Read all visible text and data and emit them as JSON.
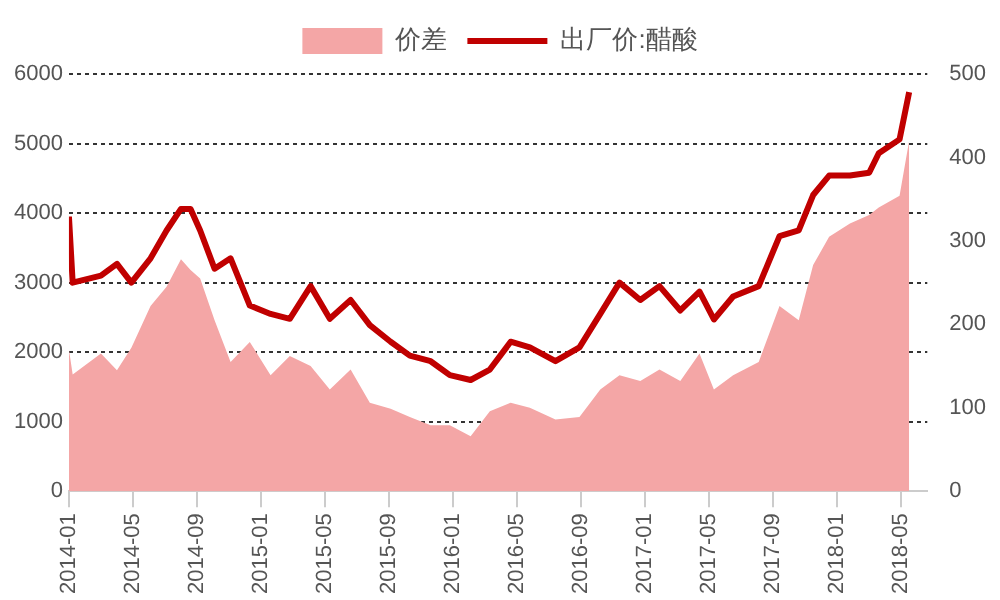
{
  "chart_data": {
    "type": "line",
    "legend": "top",
    "grid": "y",
    "marker": "none",
    "x": [
      "2014-01-01",
      "2014-01-08",
      "2014-03-01",
      "2014-04-01",
      "2014-04-28",
      "2014-06-04",
      "2014-07-04",
      "2014-08-01",
      "2014-08-19",
      "2014-09-07",
      "2014-10-04",
      "2014-11-04",
      "2014-12-10",
      "2015-01-19",
      "2015-02-25",
      "2015-04-04",
      "2015-05-10",
      "2015-06-19",
      "2015-07-25",
      "2015-09-04",
      "2015-10-10",
      "2015-11-19",
      "2015-12-25",
      "2016-02-04",
      "2016-03-10",
      "2016-04-19",
      "2016-05-25",
      "2016-07-13",
      "2016-08-28",
      "2016-10-07",
      "2016-11-13",
      "2016-12-22",
      "2017-01-28",
      "2017-03-07",
      "2017-04-13",
      "2017-05-10",
      "2017-06-16",
      "2017-08-04",
      "2017-09-13",
      "2017-10-19",
      "2017-11-16",
      "2017-12-16",
      "2018-01-25",
      "2018-03-01",
      "2018-03-19",
      "2018-04-28",
      "2018-05-16"
    ],
    "xlim": [
      "2014-01-01",
      "2018-06-20"
    ],
    "xticks": [
      "2014-01",
      "2014-05",
      "2014-09",
      "2015-01",
      "2015-05",
      "2015-09",
      "2016-01",
      "2016-05",
      "2016-09",
      "2017-01",
      "2017-05",
      "2017-09",
      "2018-01",
      "2018-05"
    ],
    "ylim": [
      0,
      6000
    ],
    "yticks": [
      0,
      1000,
      2000,
      3000,
      4000,
      5000,
      6000
    ],
    "y2lim": [
      0,
      500
    ],
    "y2ticks": [
      0,
      100,
      200,
      300,
      400,
      500
    ],
    "series": [
      {
        "name": "价差",
        "type": "area",
        "axis": "y2",
        "color": "#f4a6a6",
        "values": [
          170,
          140,
          165,
          145,
          172,
          222,
          245,
          278,
          265,
          255,
          205,
          155,
          179,
          139,
          162,
          150,
          122,
          146,
          106,
          99,
          89,
          79,
          79,
          66,
          96,
          106,
          100,
          86,
          89,
          122,
          139,
          132,
          146,
          132,
          165,
          122,
          139,
          155,
          222,
          205,
          271,
          305,
          321,
          331,
          340,
          354,
          420
        ]
      },
      {
        "name": "出厂价:醋酸",
        "type": "line",
        "color": "#c00000",
        "values": [
          3950,
          3000,
          3100,
          3270,
          3000,
          3350,
          3750,
          4060,
          4060,
          3750,
          3200,
          3350,
          2670,
          2550,
          2480,
          2950,
          2480,
          2750,
          2390,
          2150,
          1950,
          1870,
          1670,
          1600,
          1750,
          2150,
          2070,
          1870,
          2070,
          2550,
          3000,
          2750,
          2950,
          2600,
          2870,
          2470,
          2800,
          2950,
          3670,
          3750,
          4260,
          4540,
          4540,
          4580,
          4860,
          5060,
          5740
        ]
      }
    ]
  }
}
